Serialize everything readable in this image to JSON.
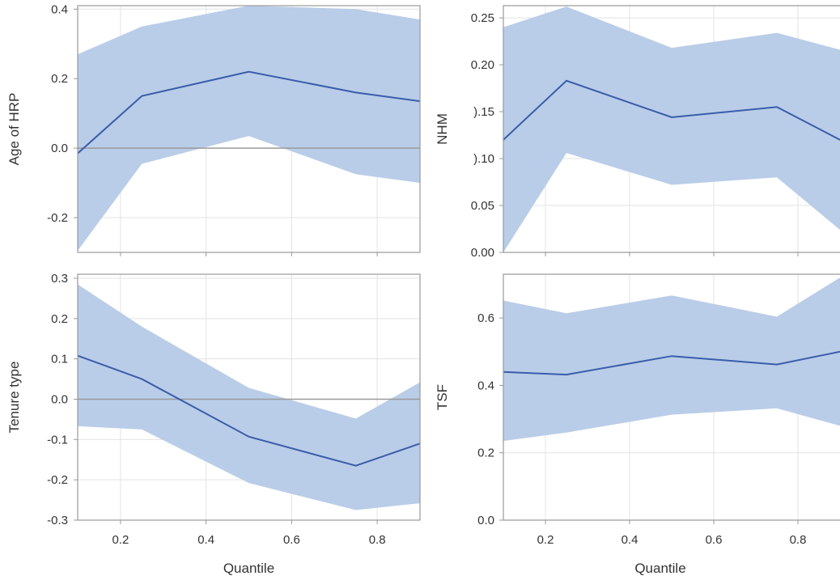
{
  "chart_data": [
    {
      "type": "area",
      "panel": "top-left",
      "title": "",
      "xlabel": "",
      "ylabel": "Age of HRP",
      "xlim": [
        0.1,
        0.9
      ],
      "ylim": [
        -0.3,
        0.41
      ],
      "x_ticks": [
        0.2,
        0.4,
        0.6,
        0.8
      ],
      "y_ticks": [
        -0.2,
        0.0,
        0.2,
        0.4
      ],
      "y_tick_labels": [
        "-0.2",
        "0.0",
        "0.2",
        "0.4"
      ],
      "x_tick_labels_visible": false,
      "x": [
        0.1,
        0.25,
        0.5,
        0.75,
        0.9
      ],
      "estimate": [
        -0.015,
        0.15,
        0.22,
        0.16,
        0.135
      ],
      "lower": [
        -0.295,
        -0.045,
        0.035,
        -0.075,
        -0.1
      ],
      "upper": [
        0.27,
        0.35,
        0.41,
        0.4,
        0.37
      ],
      "reference_line": 0,
      "grid": true
    },
    {
      "type": "area",
      "panel": "top-right",
      "title": "",
      "xlabel": "",
      "ylabel": "NHM",
      "xlim": [
        0.1,
        0.9
      ],
      "ylim": [
        0.0,
        0.263
      ],
      "x_ticks": [
        0.2,
        0.4,
        0.6,
        0.8
      ],
      "y_ticks": [
        0.0,
        0.05,
        0.1,
        0.15,
        0.2,
        0.25
      ],
      "y_tick_labels": [
        "0.00",
        "0.05",
        ").10",
        ").15",
        "0.20",
        "0.25"
      ],
      "x_tick_labels_visible": false,
      "x": [
        0.1,
        0.25,
        0.5,
        0.75,
        0.9
      ],
      "estimate": [
        0.12,
        0.183,
        0.144,
        0.155,
        0.12
      ],
      "lower": [
        0.0,
        0.106,
        0.072,
        0.08,
        0.024
      ],
      "upper": [
        0.24,
        0.262,
        0.218,
        0.234,
        0.216
      ],
      "reference_line": null,
      "grid": true
    },
    {
      "type": "area",
      "panel": "bottom-left",
      "title": "",
      "xlabel": "Quantile",
      "ylabel": "Tenure type",
      "xlim": [
        0.1,
        0.9
      ],
      "ylim": [
        -0.3,
        0.31
      ],
      "x_ticks": [
        0.2,
        0.4,
        0.6,
        0.8
      ],
      "x_tick_labels": [
        "0.2",
        "0.4",
        "0.6",
        "0.8"
      ],
      "y_ticks": [
        -0.3,
        -0.2,
        -0.1,
        0.0,
        0.1,
        0.2,
        0.3
      ],
      "y_tick_labels": [
        "-0.3",
        "-0.2",
        "-0.1",
        "0.0",
        "0.1",
        "0.2",
        "0.3"
      ],
      "x_tick_labels_visible": true,
      "x": [
        0.1,
        0.25,
        0.5,
        0.75,
        0.9
      ],
      "estimate": [
        0.108,
        0.05,
        -0.093,
        -0.165,
        -0.11
      ],
      "lower": [
        -0.067,
        -0.075,
        -0.208,
        -0.275,
        -0.258
      ],
      "upper": [
        0.285,
        0.18,
        0.028,
        -0.048,
        0.042
      ],
      "reference_line": 0,
      "grid": true
    },
    {
      "type": "area",
      "panel": "bottom-right",
      "title": "",
      "xlabel": "Quantile",
      "ylabel": "TSF",
      "xlim": [
        0.1,
        0.9
      ],
      "ylim": [
        0.0,
        0.73
      ],
      "x_ticks": [
        0.2,
        0.4,
        0.6,
        0.8
      ],
      "x_tick_labels": [
        "0.2",
        "0.4",
        "0.6",
        "0.8"
      ],
      "y_ticks": [
        0.0,
        0.2,
        0.4,
        0.6
      ],
      "y_tick_labels": [
        "0.0",
        "0.2",
        "0.4",
        "0.6"
      ],
      "x_tick_labels_visible": true,
      "x": [
        0.1,
        0.25,
        0.5,
        0.75,
        0.9
      ],
      "estimate": [
        0.44,
        0.432,
        0.487,
        0.462,
        0.5
      ],
      "lower": [
        0.235,
        0.26,
        0.313,
        0.332,
        0.28
      ],
      "upper": [
        0.652,
        0.614,
        0.667,
        0.604,
        0.72
      ],
      "reference_line": null,
      "grid": true
    }
  ],
  "colors": {
    "band": "#b9cde8",
    "estimate_line": "#3a5dab",
    "reference_line": "#9a9a9a",
    "grid": "#e3e3e3",
    "frame": "#9a9a9a",
    "text": "#333333"
  }
}
